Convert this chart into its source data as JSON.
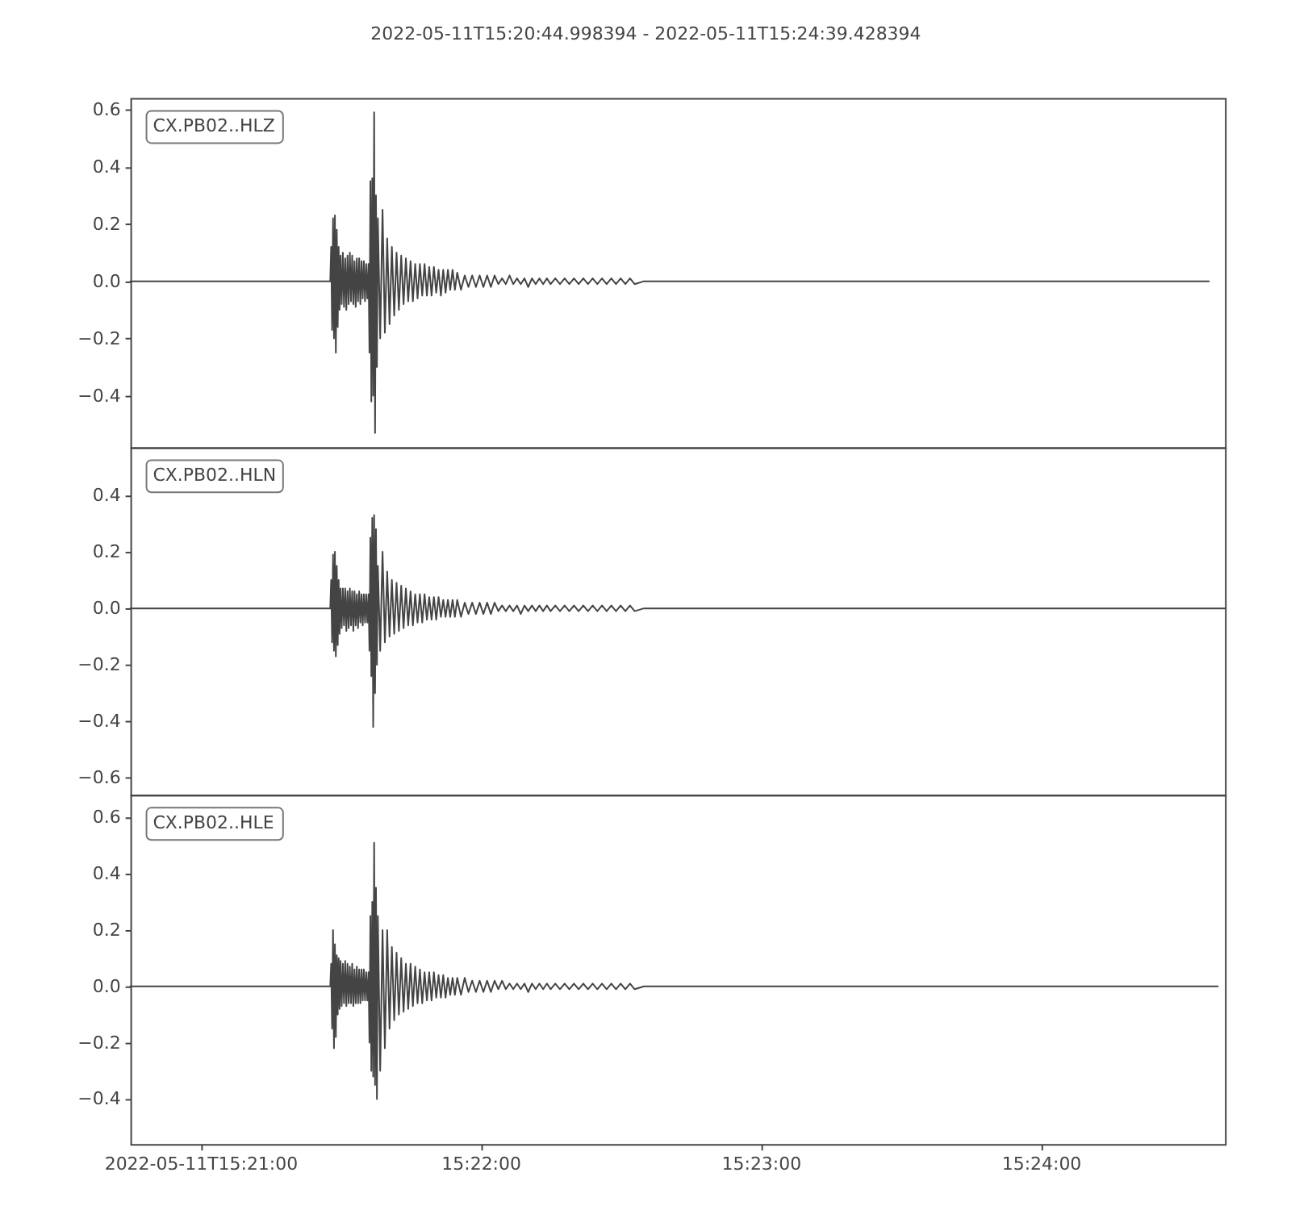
{
  "chart_data": [
    {
      "type": "line",
      "title": "2022-05-11T15:20:44.998394  -  2022-05-11T15:24:39.428394",
      "annotations": [
        "CX.PB02..HLZ"
      ],
      "xlim": [
        "2022-05-11T15:20:44.998",
        "2022-05-11T15:24:39.428"
      ],
      "ylim": [
        -0.58,
        0.64
      ],
      "yticks": [
        0.6,
        0.4,
        0.2,
        {
          "value": 0,
          "label": "0.0"
        },
        {
          "value": -0.2,
          "label": "−0.2"
        },
        {
          "value": -0.4,
          "label": "−0.4"
        }
      ],
      "tick_labels": "y",
      "series": [
        {
          "color": "#444444",
          "x": [
            "2022-05-11T15:20:45",
            "2022-05-11T15:21:27.8",
            "2022-05-11T15:21:28",
            "2022-05-11T15:21:28.2",
            "2022-05-11T15:21:28.4",
            "2022-05-11T15:21:28.6",
            "2022-05-11T15:21:28.8",
            "2022-05-11T15:21:29",
            "2022-05-11T15:21:29.2",
            "2022-05-11T15:21:29.4",
            "2022-05-11T15:21:29.6",
            "2022-05-11T15:21:29.8",
            "2022-05-11T15:21:30",
            "2022-05-11T15:21:30.25",
            "2022-05-11T15:21:30.5",
            "2022-05-11T15:21:30.75",
            "2022-05-11T15:21:31",
            "2022-05-11T15:21:31.25",
            "2022-05-11T15:21:31.5",
            "2022-05-11T15:21:31.75",
            "2022-05-11T15:21:32",
            "2022-05-11T15:21:32.25",
            "2022-05-11T15:21:32.5",
            "2022-05-11T15:21:32.75",
            "2022-05-11T15:21:33",
            "2022-05-11T15:21:33.25",
            "2022-05-11T15:21:33.5",
            "2022-05-11T15:21:33.75",
            "2022-05-11T15:21:34",
            "2022-05-11T15:21:34.25",
            "2022-05-11T15:21:34.5",
            "2022-05-11T15:21:34.75",
            "2022-05-11T15:21:35",
            "2022-05-11T15:21:35.25",
            "2022-05-11T15:21:35.5",
            "2022-05-11T15:21:35.75",
            "2022-05-11T15:21:36",
            "2022-05-11T15:21:36.2",
            "2022-05-11T15:21:36.4",
            "2022-05-11T15:21:36.6",
            "2022-05-11T15:21:36.8",
            "2022-05-11T15:21:37",
            "2022-05-11T15:21:37.2",
            "2022-05-11T15:21:37.4",
            "2022-05-11T15:21:37.6",
            "2022-05-11T15:21:37.8",
            "2022-05-11T15:21:38",
            "2022-05-11T15:21:38.5",
            "2022-05-11T15:21:39",
            "2022-05-11T15:21:39.5",
            "2022-05-11T15:21:40",
            "2022-05-11T15:21:40.5",
            "2022-05-11T15:21:41",
            "2022-05-11T15:21:41.5",
            "2022-05-11T15:21:42",
            "2022-05-11T15:21:42.5",
            "2022-05-11T15:21:43",
            "2022-05-11T15:21:43.5",
            "2022-05-11T15:21:44",
            "2022-05-11T15:21:44.5",
            "2022-05-11T15:21:45",
            "2022-05-11T15:21:45.5",
            "2022-05-11T15:21:46",
            "2022-05-11T15:21:46.5",
            "2022-05-11T15:21:47",
            "2022-05-11T15:21:47.5",
            "2022-05-11T15:21:48",
            "2022-05-11T15:21:48.5",
            "2022-05-11T15:21:49",
            "2022-05-11T15:21:49.5",
            "2022-05-11T15:21:50",
            "2022-05-11T15:21:50.5",
            "2022-05-11T15:21:51",
            "2022-05-11T15:21:51.5",
            "2022-05-11T15:21:52",
            "2022-05-11T15:21:52.5",
            "2022-05-11T15:21:53",
            "2022-05-11T15:21:53.5",
            "2022-05-11T15:21:54",
            "2022-05-11T15:21:54.5",
            "2022-05-11T15:21:55",
            "2022-05-11T15:21:55.8",
            "2022-05-11T15:21:56.6",
            "2022-05-11T15:21:57.4",
            "2022-05-11T15:21:58.2",
            "2022-05-11T15:21:59",
            "2022-05-11T15:21:59.8",
            "2022-05-11T15:22:00.6",
            "2022-05-11T15:22:01.4",
            "2022-05-11T15:22:02.2",
            "2022-05-11T15:22:03",
            "2022-05-11T15:22:03.8",
            "2022-05-11T15:22:04.6",
            "2022-05-11T15:22:05.4",
            "2022-05-11T15:22:06.2",
            "2022-05-11T15:22:07",
            "2022-05-11T15:22:07.8",
            "2022-05-11T15:22:08.6",
            "2022-05-11T15:22:09.4",
            "2022-05-11T15:22:10.2",
            "2022-05-11T15:22:11",
            "2022-05-11T15:22:11.8",
            "2022-05-11T15:22:12.6",
            "2022-05-11T15:22:13.4",
            "2022-05-11T15:22:14.2",
            "2022-05-11T15:22:15",
            "2022-05-11T15:22:16",
            "2022-05-11T15:22:17",
            "2022-05-11T15:22:18",
            "2022-05-11T15:22:19",
            "2022-05-11T15:22:20",
            "2022-05-11T15:22:21",
            "2022-05-11T15:22:22",
            "2022-05-11T15:22:23",
            "2022-05-11T15:22:24",
            "2022-05-11T15:22:25",
            "2022-05-11T15:22:26",
            "2022-05-11T15:22:27",
            "2022-05-11T15:22:28",
            "2022-05-11T15:22:29",
            "2022-05-11T15:22:30",
            "2022-05-11T15:22:31",
            "2022-05-11T15:22:32",
            "2022-05-11T15:22:33",
            "2022-05-11T15:22:35",
            "2022-05-11T15:24:36"
          ],
          "values": [
            0,
            0,
            0.12,
            -0.17,
            0.22,
            -0.2,
            0.23,
            -0.25,
            0.18,
            -0.16,
            0.12,
            -0.1,
            0.09,
            -0.08,
            0.1,
            -0.09,
            0.08,
            -0.1,
            0.09,
            -0.08,
            0.1,
            -0.07,
            0.09,
            -0.08,
            0.07,
            -0.09,
            0.08,
            -0.07,
            0.08,
            -0.08,
            0.07,
            -0.06,
            0.07,
            -0.07,
            0.06,
            -0.06,
            0.06,
            -0.25,
            0.35,
            -0.42,
            0.36,
            -0.4,
            0.59,
            -0.53,
            0.3,
            -0.3,
            0.22,
            -0.2,
            0.25,
            -0.18,
            0.15,
            -0.15,
            0.12,
            -0.12,
            0.1,
            -0.1,
            0.09,
            -0.08,
            0.08,
            -0.07,
            0.07,
            -0.07,
            0.06,
            -0.06,
            0.06,
            -0.05,
            0.06,
            -0.05,
            0.05,
            -0.05,
            0.05,
            -0.04,
            0.04,
            -0.05,
            0.04,
            -0.04,
            0.04,
            -0.03,
            0.04,
            -0.03,
            0.03,
            -0.03,
            0.02,
            -0.02,
            0.02,
            -0.02,
            0.02,
            -0.02,
            0.02,
            -0.02,
            0.02,
            -0.01,
            0.01,
            -0.01,
            0.02,
            -0.01,
            0.01,
            -0.01,
            0.01,
            -0.02,
            0.01,
            -0.01,
            0.01,
            -0.01,
            0.01,
            -0.01,
            0.01,
            -0.01,
            0.01,
            -0.01,
            0.01,
            -0.01,
            0.01,
            -0.01,
            0.01,
            -0.01,
            0.01,
            -0.01,
            0.01,
            -0.01,
            0.01,
            -0.01,
            0.01,
            -0.01,
            0,
            0
          ]
        }
      ]
    },
    {
      "type": "line",
      "annotations": [
        "CX.PB02..HLN"
      ],
      "xlim": [
        "2022-05-11T15:20:44.998",
        "2022-05-11T15:24:39.428"
      ],
      "ylim": [
        -0.66,
        0.57
      ],
      "yticks": [
        0.4,
        0.2,
        {
          "value": 0,
          "label": "0.0"
        },
        {
          "value": -0.2,
          "label": "−0.2"
        },
        {
          "value": -0.4,
          "label": "−0.4"
        },
        {
          "value": -0.6,
          "label": "−0.6"
        }
      ],
      "tick_labels": "y",
      "series": [
        {
          "color": "#444444",
          "x": [
            "2022-05-11T15:20:45",
            "2022-05-11T15:21:27.8",
            "2022-05-11T15:21:28",
            "2022-05-11T15:21:28.2",
            "2022-05-11T15:21:28.4",
            "2022-05-11T15:21:28.6",
            "2022-05-11T15:21:28.8",
            "2022-05-11T15:21:29",
            "2022-05-11T15:21:29.2",
            "2022-05-11T15:21:29.4",
            "2022-05-11T15:21:29.6",
            "2022-05-11T15:21:29.8",
            "2022-05-11T15:21:30",
            "2022-05-11T15:21:30.25",
            "2022-05-11T15:21:30.5",
            "2022-05-11T15:21:30.75",
            "2022-05-11T15:21:31",
            "2022-05-11T15:21:31.25",
            "2022-05-11T15:21:31.5",
            "2022-05-11T15:21:31.75",
            "2022-05-11T15:21:32",
            "2022-05-11T15:21:32.25",
            "2022-05-11T15:21:32.5",
            "2022-05-11T15:21:32.75",
            "2022-05-11T15:21:33",
            "2022-05-11T15:21:33.25",
            "2022-05-11T15:21:33.5",
            "2022-05-11T15:21:33.75",
            "2022-05-11T15:21:34",
            "2022-05-11T15:21:34.25",
            "2022-05-11T15:21:34.5",
            "2022-05-11T15:21:34.75",
            "2022-05-11T15:21:35",
            "2022-05-11T15:21:35.25",
            "2022-05-11T15:21:35.5",
            "2022-05-11T15:21:35.75",
            "2022-05-11T15:21:36",
            "2022-05-11T15:21:36.2",
            "2022-05-11T15:21:36.4",
            "2022-05-11T15:21:36.6",
            "2022-05-11T15:21:36.8",
            "2022-05-11T15:21:37",
            "2022-05-11T15:21:37.2",
            "2022-05-11T15:21:37.4",
            "2022-05-11T15:21:37.6",
            "2022-05-11T15:21:37.8",
            "2022-05-11T15:21:38",
            "2022-05-11T15:21:38.5",
            "2022-05-11T15:21:39",
            "2022-05-11T15:21:39.5",
            "2022-05-11T15:21:40",
            "2022-05-11T15:21:40.5",
            "2022-05-11T15:21:41",
            "2022-05-11T15:21:41.5",
            "2022-05-11T15:21:42",
            "2022-05-11T15:21:42.5",
            "2022-05-11T15:21:43",
            "2022-05-11T15:21:43.5",
            "2022-05-11T15:21:44",
            "2022-05-11T15:21:44.5",
            "2022-05-11T15:21:45",
            "2022-05-11T15:21:45.5",
            "2022-05-11T15:21:46",
            "2022-05-11T15:21:46.5",
            "2022-05-11T15:21:47",
            "2022-05-11T15:21:47.5",
            "2022-05-11T15:21:48",
            "2022-05-11T15:21:48.5",
            "2022-05-11T15:21:49",
            "2022-05-11T15:21:49.5",
            "2022-05-11T15:21:50",
            "2022-05-11T15:21:50.5",
            "2022-05-11T15:21:51",
            "2022-05-11T15:21:51.5",
            "2022-05-11T15:21:52",
            "2022-05-11T15:21:52.5",
            "2022-05-11T15:21:53",
            "2022-05-11T15:21:53.5",
            "2022-05-11T15:21:54",
            "2022-05-11T15:21:54.5",
            "2022-05-11T15:21:55",
            "2022-05-11T15:21:55.8",
            "2022-05-11T15:21:56.6",
            "2022-05-11T15:21:57.4",
            "2022-05-11T15:21:58.2",
            "2022-05-11T15:21:59",
            "2022-05-11T15:21:59.8",
            "2022-05-11T15:22:00.6",
            "2022-05-11T15:22:01.4",
            "2022-05-11T15:22:02.2",
            "2022-05-11T15:22:03",
            "2022-05-11T15:22:03.8",
            "2022-05-11T15:22:04.6",
            "2022-05-11T15:22:05.4",
            "2022-05-11T15:22:06.2",
            "2022-05-11T15:22:07",
            "2022-05-11T15:22:07.8",
            "2022-05-11T15:22:08.6",
            "2022-05-11T15:22:09.4",
            "2022-05-11T15:22:10.2",
            "2022-05-11T15:22:11",
            "2022-05-11T15:22:11.8",
            "2022-05-11T15:22:12.6",
            "2022-05-11T15:22:13.4",
            "2022-05-11T15:22:14.2",
            "2022-05-11T15:22:15",
            "2022-05-11T15:22:16",
            "2022-05-11T15:22:17",
            "2022-05-11T15:22:18",
            "2022-05-11T15:22:19",
            "2022-05-11T15:22:20",
            "2022-05-11T15:22:21",
            "2022-05-11T15:22:22",
            "2022-05-11T15:22:23",
            "2022-05-11T15:22:24",
            "2022-05-11T15:22:25",
            "2022-05-11T15:22:26",
            "2022-05-11T15:22:27",
            "2022-05-11T15:22:28",
            "2022-05-11T15:22:29",
            "2022-05-11T15:22:30",
            "2022-05-11T15:22:31",
            "2022-05-11T15:22:32",
            "2022-05-11T15:22:33",
            "2022-05-11T15:22:35",
            "2022-05-11T15:24:39.4"
          ],
          "values": [
            0,
            0,
            0.1,
            -0.12,
            0.19,
            -0.15,
            0.2,
            -0.17,
            0.15,
            -0.13,
            0.1,
            -0.09,
            0.07,
            -0.07,
            0.07,
            -0.06,
            0.07,
            -0.08,
            0.06,
            -0.07,
            0.07,
            -0.06,
            0.06,
            -0.08,
            0.06,
            -0.06,
            0.05,
            -0.07,
            0.06,
            -0.05,
            0.05,
            -0.06,
            0.05,
            -0.05,
            0.05,
            -0.05,
            0.05,
            -0.15,
            0.25,
            -0.24,
            0.32,
            -0.42,
            0.33,
            -0.3,
            0.28,
            -0.2,
            0.15,
            -0.15,
            0.2,
            -0.12,
            0.13,
            -0.1,
            0.1,
            -0.09,
            0.09,
            -0.08,
            0.08,
            -0.07,
            0.07,
            -0.06,
            0.06,
            -0.06,
            0.05,
            -0.05,
            0.05,
            -0.05,
            0.05,
            -0.04,
            0.04,
            -0.04,
            0.04,
            -0.04,
            0.04,
            -0.03,
            0.03,
            -0.03,
            0.03,
            -0.03,
            0.03,
            -0.03,
            0.03,
            -0.03,
            0.02,
            -0.02,
            0.02,
            -0.02,
            0.02,
            -0.02,
            0.02,
            -0.02,
            0.02,
            -0.01,
            0.01,
            -0.01,
            0.01,
            -0.01,
            0.01,
            -0.02,
            0.01,
            -0.01,
            0.01,
            -0.01,
            0.01,
            -0.01,
            0.01,
            -0.01,
            0.01,
            -0.01,
            0.01,
            -0.01,
            0.01,
            -0.01,
            0.01,
            -0.01,
            0.01,
            -0.01,
            0.01,
            -0.01,
            0.01,
            -0.01,
            0.01,
            -0.01,
            0.01,
            -0.01,
            0,
            0
          ]
        }
      ]
    },
    {
      "type": "line",
      "annotations": [
        "CX.PB02..HLE"
      ],
      "xlim": [
        "2022-05-11T15:20:44.998",
        "2022-05-11T15:24:39.428"
      ],
      "xticks": [
        {
          "value": "2022-05-11T15:21:00",
          "label": "2022-05-11T15:21:00"
        },
        {
          "value": "2022-05-11T15:22:00",
          "label": "15:22:00"
        },
        {
          "value": "2022-05-11T15:23:00",
          "label": "15:23:00"
        },
        {
          "value": "2022-05-11T15:24:00",
          "label": "15:24:00"
        }
      ],
      "ylim": [
        -0.56,
        0.68
      ],
      "yticks": [
        0.6,
        0.4,
        0.2,
        {
          "value": 0,
          "label": "0.0"
        },
        {
          "value": -0.2,
          "label": "−0.2"
        },
        {
          "value": -0.4,
          "label": "−0.4"
        }
      ],
      "series": [
        {
          "color": "#444444",
          "x": [
            "2022-05-11T15:20:45",
            "2022-05-11T15:21:27.8",
            "2022-05-11T15:21:28",
            "2022-05-11T15:21:28.2",
            "2022-05-11T15:21:28.4",
            "2022-05-11T15:21:28.6",
            "2022-05-11T15:21:28.8",
            "2022-05-11T15:21:29",
            "2022-05-11T15:21:29.2",
            "2022-05-11T15:21:29.4",
            "2022-05-11T15:21:29.6",
            "2022-05-11T15:21:29.8",
            "2022-05-11T15:21:30",
            "2022-05-11T15:21:30.25",
            "2022-05-11T15:21:30.5",
            "2022-05-11T15:21:30.75",
            "2022-05-11T15:21:31",
            "2022-05-11T15:21:31.25",
            "2022-05-11T15:21:31.5",
            "2022-05-11T15:21:31.75",
            "2022-05-11T15:21:32",
            "2022-05-11T15:21:32.25",
            "2022-05-11T15:21:32.5",
            "2022-05-11T15:21:32.75",
            "2022-05-11T15:21:33",
            "2022-05-11T15:21:33.25",
            "2022-05-11T15:21:33.5",
            "2022-05-11T15:21:33.75",
            "2022-05-11T15:21:34",
            "2022-05-11T15:21:34.25",
            "2022-05-11T15:21:34.5",
            "2022-05-11T15:21:34.75",
            "2022-05-11T15:21:35",
            "2022-05-11T15:21:35.25",
            "2022-05-11T15:21:35.5",
            "2022-05-11T15:21:35.75",
            "2022-05-11T15:21:36",
            "2022-05-11T15:21:36.2",
            "2022-05-11T15:21:36.4",
            "2022-05-11T15:21:36.6",
            "2022-05-11T15:21:36.8",
            "2022-05-11T15:21:37",
            "2022-05-11T15:21:37.2",
            "2022-05-11T15:21:37.4",
            "2022-05-11T15:21:37.6",
            "2022-05-11T15:21:37.8",
            "2022-05-11T15:21:38",
            "2022-05-11T15:21:38.5",
            "2022-05-11T15:21:39",
            "2022-05-11T15:21:39.5",
            "2022-05-11T15:21:40",
            "2022-05-11T15:21:40.5",
            "2022-05-11T15:21:41",
            "2022-05-11T15:21:41.5",
            "2022-05-11T15:21:42",
            "2022-05-11T15:21:42.5",
            "2022-05-11T15:21:43",
            "2022-05-11T15:21:43.5",
            "2022-05-11T15:21:44",
            "2022-05-11T15:21:44.5",
            "2022-05-11T15:21:45",
            "2022-05-11T15:21:45.5",
            "2022-05-11T15:21:46",
            "2022-05-11T15:21:46.5",
            "2022-05-11T15:21:47",
            "2022-05-11T15:21:47.5",
            "2022-05-11T15:21:48",
            "2022-05-11T15:21:48.5",
            "2022-05-11T15:21:49",
            "2022-05-11T15:21:49.5",
            "2022-05-11T15:21:50",
            "2022-05-11T15:21:50.5",
            "2022-05-11T15:21:51",
            "2022-05-11T15:21:51.5",
            "2022-05-11T15:21:52",
            "2022-05-11T15:21:52.5",
            "2022-05-11T15:21:53",
            "2022-05-11T15:21:53.5",
            "2022-05-11T15:21:54",
            "2022-05-11T15:21:54.5",
            "2022-05-11T15:21:55",
            "2022-05-11T15:21:55.8",
            "2022-05-11T15:21:56.6",
            "2022-05-11T15:21:57.4",
            "2022-05-11T15:21:58.2",
            "2022-05-11T15:21:59",
            "2022-05-11T15:21:59.8",
            "2022-05-11T15:22:00.6",
            "2022-05-11T15:22:01.4",
            "2022-05-11T15:22:02.2",
            "2022-05-11T15:22:03",
            "2022-05-11T15:22:03.8",
            "2022-05-11T15:22:04.6",
            "2022-05-11T15:22:05.4",
            "2022-05-11T15:22:06.2",
            "2022-05-11T15:22:07",
            "2022-05-11T15:22:07.8",
            "2022-05-11T15:22:08.6",
            "2022-05-11T15:22:09.4",
            "2022-05-11T15:22:10.2",
            "2022-05-11T15:22:11",
            "2022-05-11T15:22:11.8",
            "2022-05-11T15:22:12.6",
            "2022-05-11T15:22:13.4",
            "2022-05-11T15:22:14.2",
            "2022-05-11T15:22:15",
            "2022-05-11T15:22:16",
            "2022-05-11T15:22:17",
            "2022-05-11T15:22:18",
            "2022-05-11T15:22:19",
            "2022-05-11T15:22:20",
            "2022-05-11T15:22:21",
            "2022-05-11T15:22:22",
            "2022-05-11T15:22:23",
            "2022-05-11T15:22:24",
            "2022-05-11T15:22:25",
            "2022-05-11T15:22:26",
            "2022-05-11T15:22:27",
            "2022-05-11T15:22:28",
            "2022-05-11T15:22:29",
            "2022-05-11T15:22:30",
            "2022-05-11T15:22:31",
            "2022-05-11T15:22:32",
            "2022-05-11T15:22:33",
            "2022-05-11T15:22:35",
            "2022-05-11T15:24:37.9"
          ],
          "values": [
            0,
            0,
            0.08,
            -0.15,
            0.2,
            -0.22,
            0.15,
            -0.18,
            0.11,
            -0.1,
            0.1,
            -0.08,
            0.09,
            -0.07,
            0.08,
            -0.06,
            0.09,
            -0.07,
            0.08,
            -0.06,
            0.07,
            -0.06,
            0.08,
            -0.07,
            0.06,
            -0.06,
            0.07,
            -0.06,
            0.06,
            -0.06,
            0.06,
            -0.05,
            0.06,
            -0.05,
            0.05,
            -0.05,
            0.05,
            -0.2,
            0.25,
            -0.3,
            0.3,
            -0.32,
            0.51,
            -0.35,
            0.35,
            -0.4,
            0.25,
            -0.3,
            0.2,
            -0.22,
            0.2,
            -0.15,
            0.14,
            -0.12,
            0.12,
            -0.1,
            0.1,
            -0.09,
            0.08,
            -0.08,
            0.08,
            -0.07,
            0.07,
            -0.06,
            0.06,
            -0.06,
            0.05,
            -0.05,
            0.05,
            -0.05,
            0.05,
            -0.04,
            0.04,
            -0.04,
            0.04,
            -0.04,
            0.03,
            -0.03,
            0.03,
            -0.03,
            0.03,
            -0.03,
            0.03,
            -0.02,
            0.02,
            -0.02,
            0.02,
            -0.02,
            0.02,
            -0.02,
            0.02,
            -0.01,
            0.02,
            -0.01,
            0.01,
            -0.01,
            0.01,
            -0.01,
            0.01,
            -0.02,
            0.01,
            -0.01,
            0.01,
            -0.01,
            0.01,
            -0.01,
            0.01,
            -0.01,
            0.01,
            -0.01,
            0.01,
            -0.01,
            0.01,
            -0.01,
            0.01,
            -0.01,
            0.01,
            -0.01,
            0.01,
            -0.01,
            0.01,
            -0.01,
            0.01,
            -0.01,
            0,
            0
          ]
        }
      ]
    }
  ]
}
